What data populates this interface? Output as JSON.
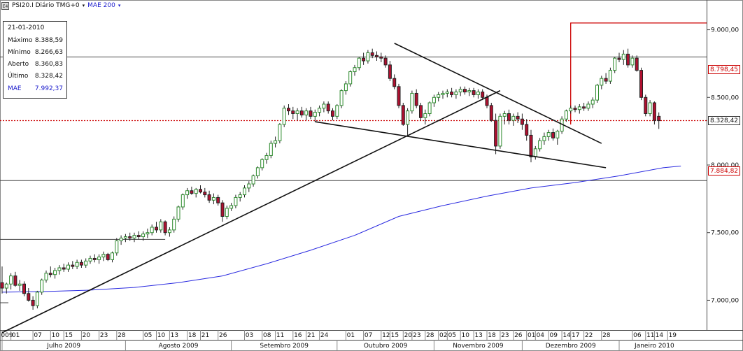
{
  "header": {
    "icon_text": "E4",
    "title": "PSI20.I Diário TMG+0",
    "dropdown_arrow": "▾",
    "indicator": "MAE 200"
  },
  "info_box": {
    "date": "21-01-2010",
    "rows": [
      {
        "label": "Máximo",
        "value": "8.388,59"
      },
      {
        "label": "Mínimo",
        "value": "8.266,63"
      },
      {
        "label": "Aberto",
        "value": "8.360,83"
      },
      {
        "label": "Último",
        "value": "8.328,42"
      }
    ],
    "mae": {
      "label": "MAE",
      "value": "7.992,37"
    }
  },
  "price_labels": {
    "resistance": "8.798,45",
    "last": "8.328,42",
    "support": "7.884,82"
  },
  "colors": {
    "up": "#2d8a2d",
    "down": "#b01030",
    "mae": "#2a2ae0",
    "red_line": "#cc0000",
    "grid": "#444444"
  },
  "chart_data": {
    "type": "candlestick",
    "title": "PSI20.I Diário TMG+0",
    "y_ticks": [
      "9.000,00",
      "8.500,00",
      "8.000,00",
      "7.500,00",
      "7.000,00"
    ],
    "y_tick_values": [
      9000,
      8500,
      8000,
      7500,
      7000
    ],
    "ylim": [
      6780,
      9220
    ],
    "x_day_labels": [
      "009",
      "01",
      "07",
      "10",
      "15",
      "20",
      "23",
      "28",
      "05",
      "10",
      "13",
      "18",
      "21",
      "26",
      "03",
      "08",
      "11",
      "16",
      "21",
      "24",
      "01",
      "07",
      "12",
      "15",
      "20",
      "23",
      "28",
      "02",
      "05",
      "10",
      "13",
      "18",
      "23",
      "26",
      "01",
      "04",
      "09",
      "14",
      "17",
      "22",
      "28",
      "06",
      "11",
      "14",
      "19"
    ],
    "x_day_index": [
      0,
      2,
      7,
      11,
      14,
      18,
      22,
      26,
      32,
      35,
      38,
      42,
      45,
      49,
      55,
      59,
      62,
      66,
      69,
      72,
      78,
      82,
      86,
      88,
      91,
      93,
      96,
      99,
      101,
      104,
      107,
      110,
      113,
      116,
      119,
      121,
      124,
      127,
      129,
      132,
      136,
      143,
      146,
      148,
      151
    ],
    "months": [
      {
        "label": "Julho 2009",
        "start": 0,
        "end": 28
      },
      {
        "label": "Agosto 2009",
        "start": 28,
        "end": 52
      },
      {
        "label": "Setembro 2009",
        "start": 52,
        "end": 76
      },
      {
        "label": "Outubro 2009",
        "start": 76,
        "end": 98
      },
      {
        "label": "Novembro 2009",
        "start": 98,
        "end": 118
      },
      {
        "label": "Dezembro 2009",
        "start": 118,
        "end": 140
      },
      {
        "label": "Janeiro 2010",
        "start": 140,
        "end": 156
      }
    ],
    "candles": [
      [
        7130,
        7250,
        7050,
        7090
      ],
      [
        7090,
        7130,
        7050,
        7120
      ],
      [
        7120,
        7200,
        7080,
        7180
      ],
      [
        7180,
        7210,
        7100,
        7110
      ],
      [
        7110,
        7150,
        7070,
        7120
      ],
      [
        7120,
        7140,
        7030,
        7050
      ],
      [
        7050,
        7090,
        6990,
        7000
      ],
      [
        7000,
        7030,
        6930,
        6960
      ],
      [
        6960,
        7070,
        6940,
        7060
      ],
      [
        7060,
        7160,
        7040,
        7150
      ],
      [
        7150,
        7220,
        7130,
        7200
      ],
      [
        7200,
        7250,
        7170,
        7190
      ],
      [
        7190,
        7240,
        7160,
        7220
      ],
      [
        7220,
        7260,
        7190,
        7240
      ],
      [
        7240,
        7270,
        7210,
        7230
      ],
      [
        7230,
        7280,
        7210,
        7260
      ],
      [
        7260,
        7290,
        7230,
        7250
      ],
      [
        7250,
        7300,
        7230,
        7280
      ],
      [
        7280,
        7300,
        7240,
        7260
      ],
      [
        7260,
        7310,
        7240,
        7290
      ],
      [
        7290,
        7330,
        7270,
        7310
      ],
      [
        7310,
        7340,
        7280,
        7300
      ],
      [
        7300,
        7340,
        7270,
        7320
      ],
      [
        7320,
        7360,
        7290,
        7340
      ],
      [
        7340,
        7350,
        7290,
        7300
      ],
      [
        7300,
        7360,
        7280,
        7350
      ],
      [
        7350,
        7460,
        7330,
        7440
      ],
      [
        7440,
        7480,
        7410,
        7460
      ],
      [
        7460,
        7490,
        7430,
        7470
      ],
      [
        7470,
        7500,
        7440,
        7460
      ],
      [
        7460,
        7500,
        7430,
        7480
      ],
      [
        7480,
        7510,
        7450,
        7470
      ],
      [
        7470,
        7510,
        7440,
        7490
      ],
      [
        7490,
        7530,
        7460,
        7500
      ],
      [
        7500,
        7560,
        7480,
        7540
      ],
      [
        7540,
        7580,
        7500,
        7520
      ],
      [
        7520,
        7600,
        7500,
        7580
      ],
      [
        7580,
        7590,
        7480,
        7500
      ],
      [
        7500,
        7540,
        7470,
        7520
      ],
      [
        7520,
        7620,
        7500,
        7600
      ],
      [
        7600,
        7700,
        7580,
        7690
      ],
      [
        7690,
        7790,
        7670,
        7780
      ],
      [
        7780,
        7830,
        7750,
        7810
      ],
      [
        7810,
        7840,
        7780,
        7790
      ],
      [
        7790,
        7830,
        7760,
        7820
      ],
      [
        7820,
        7850,
        7790,
        7800
      ],
      [
        7800,
        7830,
        7760,
        7780
      ],
      [
        7780,
        7810,
        7720,
        7740
      ],
      [
        7740,
        7790,
        7710,
        7760
      ],
      [
        7760,
        7780,
        7700,
        7720
      ],
      [
        7720,
        7740,
        7580,
        7620
      ],
      [
        7620,
        7700,
        7600,
        7680
      ],
      [
        7680,
        7720,
        7660,
        7700
      ],
      [
        7700,
        7780,
        7680,
        7760
      ],
      [
        7760,
        7800,
        7730,
        7780
      ],
      [
        7780,
        7850,
        7760,
        7830
      ],
      [
        7830,
        7880,
        7800,
        7860
      ],
      [
        7860,
        7930,
        7840,
        7920
      ],
      [
        7920,
        7990,
        7900,
        7980
      ],
      [
        7980,
        8050,
        7960,
        8040
      ],
      [
        8040,
        8090,
        8010,
        8070
      ],
      [
        8070,
        8180,
        8050,
        8160
      ],
      [
        8160,
        8210,
        8130,
        8180
      ],
      [
        8180,
        8310,
        8160,
        8300
      ],
      [
        8300,
        8440,
        8280,
        8420
      ],
      [
        8420,
        8450,
        8370,
        8400
      ],
      [
        8400,
        8430,
        8340,
        8380
      ],
      [
        8380,
        8420,
        8330,
        8400
      ],
      [
        8400,
        8430,
        8350,
        8370
      ],
      [
        8370,
        8420,
        8330,
        8400
      ],
      [
        8400,
        8430,
        8340,
        8360
      ],
      [
        8360,
        8410,
        8320,
        8390
      ],
      [
        8390,
        8440,
        8360,
        8420
      ],
      [
        8420,
        8470,
        8390,
        8450
      ],
      [
        8450,
        8470,
        8380,
        8400
      ],
      [
        8400,
        8420,
        8330,
        8360
      ],
      [
        8360,
        8450,
        8340,
        8440
      ],
      [
        8440,
        8560,
        8420,
        8550
      ],
      [
        8550,
        8620,
        8520,
        8600
      ],
      [
        8600,
        8700,
        8580,
        8690
      ],
      [
        8690,
        8740,
        8660,
        8720
      ],
      [
        8720,
        8800,
        8700,
        8790
      ],
      [
        8790,
        8830,
        8740,
        8770
      ],
      [
        8770,
        8850,
        8750,
        8830
      ],
      [
        8830,
        8860,
        8790,
        8810
      ],
      [
        8810,
        8840,
        8770,
        8800
      ],
      [
        8800,
        8830,
        8760,
        8790
      ],
      [
        8790,
        8810,
        8720,
        8740
      ],
      [
        8740,
        8770,
        8620,
        8640
      ],
      [
        8640,
        8670,
        8560,
        8580
      ],
      [
        8580,
        8600,
        8420,
        8440
      ],
      [
        8440,
        8460,
        8290,
        8300
      ],
      [
        8300,
        8420,
        8220,
        8400
      ],
      [
        8400,
        8550,
        8380,
        8530
      ],
      [
        8530,
        8560,
        8420,
        8440
      ],
      [
        8440,
        8460,
        8330,
        8350
      ],
      [
        8350,
        8410,
        8300,
        8380
      ],
      [
        8380,
        8470,
        8360,
        8460
      ],
      [
        8460,
        8520,
        8430,
        8500
      ],
      [
        8500,
        8540,
        8470,
        8520
      ],
      [
        8520,
        8550,
        8490,
        8530
      ],
      [
        8530,
        8560,
        8500,
        8540
      ],
      [
        8540,
        8570,
        8500,
        8520
      ],
      [
        8520,
        8560,
        8490,
        8540
      ],
      [
        8540,
        8580,
        8510,
        8560
      ],
      [
        8560,
        8580,
        8520,
        8540
      ],
      [
        8540,
        8570,
        8510,
        8550
      ],
      [
        8550,
        8570,
        8500,
        8520
      ],
      [
        8520,
        8560,
        8490,
        8540
      ],
      [
        8540,
        8560,
        8480,
        8500
      ],
      [
        8500,
        8520,
        8420,
        8440
      ],
      [
        8440,
        8460,
        8320,
        8330
      ],
      [
        8330,
        8380,
        8080,
        8140
      ],
      [
        8140,
        8380,
        8120,
        8360
      ],
      [
        8360,
        8400,
        8300,
        8380
      ],
      [
        8380,
        8410,
        8300,
        8330
      ],
      [
        8330,
        8380,
        8290,
        8360
      ],
      [
        8360,
        8390,
        8310,
        8340
      ],
      [
        8340,
        8380,
        8260,
        8300
      ],
      [
        8300,
        8340,
        8180,
        8220
      ],
      [
        8220,
        8260,
        8020,
        8060
      ],
      [
        8060,
        8140,
        8040,
        8120
      ],
      [
        8120,
        8200,
        8100,
        8180
      ],
      [
        8180,
        8240,
        8150,
        8210
      ],
      [
        8210,
        8260,
        8180,
        8240
      ],
      [
        8240,
        8270,
        8180,
        8200
      ],
      [
        8200,
        8260,
        8150,
        8250
      ],
      [
        8250,
        8360,
        8230,
        8340
      ],
      [
        8340,
        8410,
        8320,
        8400
      ],
      [
        8400,
        8440,
        8380,
        8420
      ],
      [
        8420,
        8440,
        8390,
        8410
      ],
      [
        8410,
        8450,
        8380,
        8430
      ],
      [
        8430,
        8460,
        8400,
        8420
      ],
      [
        8420,
        8470,
        8400,
        8450
      ],
      [
        8450,
        8500,
        8420,
        8480
      ],
      [
        8480,
        8600,
        8460,
        8590
      ],
      [
        8590,
        8660,
        8560,
        8640
      ],
      [
        8640,
        8680,
        8600,
        8620
      ],
      [
        8620,
        8720,
        8600,
        8700
      ],
      [
        8700,
        8800,
        8680,
        8790
      ],
      [
        8790,
        8830,
        8760,
        8780
      ],
      [
        8780,
        8850,
        8740,
        8820
      ],
      [
        8820,
        8860,
        8720,
        8740
      ],
      [
        8740,
        8810,
        8720,
        8790
      ],
      [
        8790,
        8810,
        8690,
        8700
      ],
      [
        8700,
        8720,
        8480,
        8500
      ],
      [
        8500,
        8520,
        8360,
        8380
      ],
      [
        8380,
        8480,
        8360,
        8460
      ],
      [
        8460,
        8470,
        8300,
        8330
      ],
      [
        8360,
        8389,
        8267,
        8328
      ]
    ],
    "mae200": [
      [
        0,
        7060
      ],
      [
        10,
        7065
      ],
      [
        20,
        7075
      ],
      [
        30,
        7095
      ],
      [
        40,
        7130
      ],
      [
        50,
        7180
      ],
      [
        60,
        7270
      ],
      [
        70,
        7370
      ],
      [
        80,
        7480
      ],
      [
        90,
        7620
      ],
      [
        100,
        7700
      ],
      [
        110,
        7770
      ],
      [
        120,
        7830
      ],
      [
        130,
        7870
      ],
      [
        140,
        7920
      ],
      [
        150,
        7980
      ],
      [
        154,
        7992
      ]
    ],
    "levels": {
      "resistance": 8798.45,
      "last": 8328.42,
      "support": 7884.82,
      "left_level": 7450
    },
    "red_step": {
      "index": 129,
      "from": 8300,
      "to": 9050
    },
    "trendlines": [
      {
        "from": [
          0,
          6760
        ],
        "to": [
          113,
          8550
        ]
      },
      {
        "from": [
          89,
          8900
        ],
        "to": [
          136,
          8160
        ]
      },
      {
        "from": [
          71,
          8320
        ],
        "to": [
          137,
          7980
        ]
      }
    ]
  }
}
